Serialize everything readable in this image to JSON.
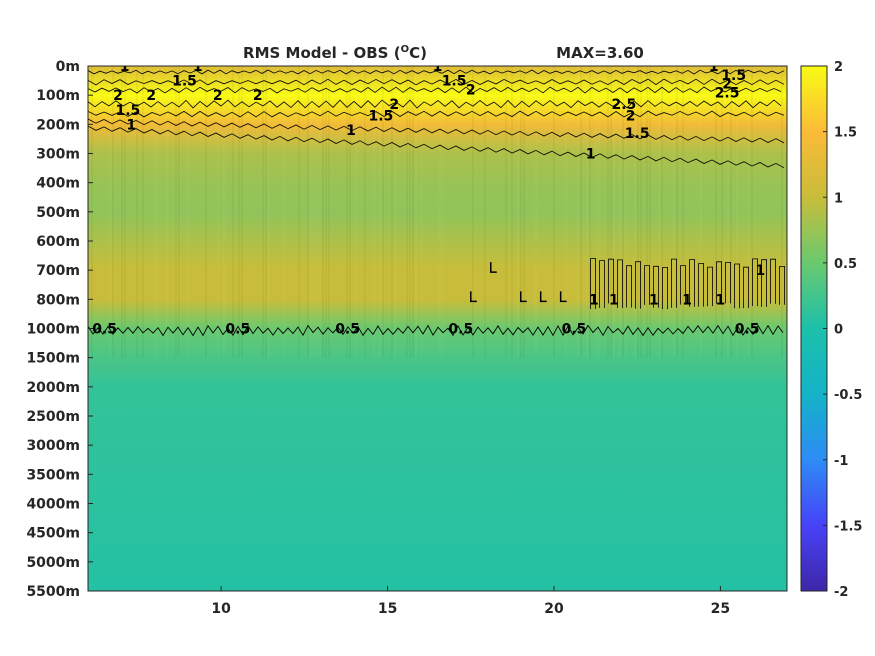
{
  "chart_data": {
    "type": "heatmap",
    "title": "RMS Model - OBS (",
    "title_sup": "O",
    "title_unit": "C)",
    "max_label": "MAX=3.60",
    "x_ticks": [
      10,
      15,
      20,
      25
    ],
    "xlim": [
      6,
      27
    ],
    "y_tick_labels": [
      "0m",
      "100m",
      "200m",
      "300m",
      "400m",
      "500m",
      "600m",
      "700m",
      "800m",
      "1000m",
      "1500m",
      "2000m",
      "2500m",
      "3000m",
      "3500m",
      "4000m",
      "4500m",
      "5000m",
      "5500m"
    ],
    "colorbar": {
      "ticks": [
        2,
        1.5,
        1,
        0.5,
        0,
        -0.5,
        -1,
        -1.5,
        -2
      ],
      "range": [
        -2,
        2
      ],
      "colors": [
        "#3e26a8",
        "#4743f8",
        "#2d8cf5",
        "#14b3c8",
        "#1cc0aa",
        "#6ac96f",
        "#c8bd3a",
        "#fbbb38",
        "#f9fb15"
      ]
    },
    "depth_profile": [
      {
        "depth": "0m",
        "value": 1.2
      },
      {
        "depth": "100m",
        "value": 2.1
      },
      {
        "depth": "200m",
        "value": 1.4
      },
      {
        "depth": "300m",
        "value": 0.85
      },
      {
        "depth": "400m",
        "value": 0.75
      },
      {
        "depth": "500m",
        "value": 0.7
      },
      {
        "depth": "600m",
        "value": 0.85
      },
      {
        "depth": "700m",
        "value": 1.0
      },
      {
        "depth": "800m",
        "value": 1.0
      },
      {
        "depth": "1000m",
        "value": 0.5
      },
      {
        "depth": "1500m",
        "value": 0.3
      },
      {
        "depth": "2000m",
        "value": 0.15
      },
      {
        "depth": "5500m",
        "value": 0.05
      }
    ],
    "contour_labels": [
      {
        "text": "1",
        "x": 7.1,
        "y": "0m"
      },
      {
        "text": "1",
        "x": 9.3,
        "y": "0m"
      },
      {
        "text": "1",
        "x": 16.5,
        "y": "0m"
      },
      {
        "text": "1",
        "x": 24.8,
        "y": "0m"
      },
      {
        "text": "1.5",
        "x": 8.9,
        "y": "50m"
      },
      {
        "text": "1.5",
        "x": 17.0,
        "y": "50m"
      },
      {
        "text": "1.5",
        "x": 25.4,
        "y": "30m"
      },
      {
        "text": "2",
        "x": 6.9,
        "y": "100m"
      },
      {
        "text": "2",
        "x": 7.9,
        "y": "100m"
      },
      {
        "text": "2",
        "x": 9.9,
        "y": "100m"
      },
      {
        "text": "2",
        "x": 11.1,
        "y": "100m"
      },
      {
        "text": "2",
        "x": 17.5,
        "y": "80m"
      },
      {
        "text": "2",
        "x": 15.2,
        "y": "130m"
      },
      {
        "text": "2",
        "x": 22.3,
        "y": "170m"
      },
      {
        "text": "2",
        "x": 25.2,
        "y": "60m"
      },
      {
        "text": "2.5",
        "x": 22.1,
        "y": "130m"
      },
      {
        "text": "2.5",
        "x": 25.2,
        "y": "90m"
      },
      {
        "text": "1.5",
        "x": 7.2,
        "y": "150m"
      },
      {
        "text": "1.5",
        "x": 14.8,
        "y": "170m"
      },
      {
        "text": "1.5",
        "x": 22.5,
        "y": "230m"
      },
      {
        "text": "1",
        "x": 7.3,
        "y": "200m"
      },
      {
        "text": "1",
        "x": 13.9,
        "y": "220m"
      },
      {
        "text": "1",
        "x": 21.1,
        "y": "300m"
      },
      {
        "text": "1",
        "x": 21.2,
        "y": "800m"
      },
      {
        "text": "1",
        "x": 21.8,
        "y": "800m"
      },
      {
        "text": "1",
        "x": 23.0,
        "y": "800m"
      },
      {
        "text": "1",
        "x": 24.0,
        "y": "800m"
      },
      {
        "text": "1",
        "x": 25.0,
        "y": "800m"
      },
      {
        "text": "1",
        "x": 26.2,
        "y": "700m"
      },
      {
        "text": "0.5",
        "x": 6.5,
        "y": "1000m"
      },
      {
        "text": "0.5",
        "x": 10.5,
        "y": "1000m"
      },
      {
        "text": "0.5",
        "x": 13.8,
        "y": "1000m"
      },
      {
        "text": "0.5",
        "x": 17.2,
        "y": "1000m"
      },
      {
        "text": "0.5",
        "x": 20.6,
        "y": "1000m"
      },
      {
        "text": "0.5",
        "x": 25.8,
        "y": "1000m"
      }
    ]
  }
}
